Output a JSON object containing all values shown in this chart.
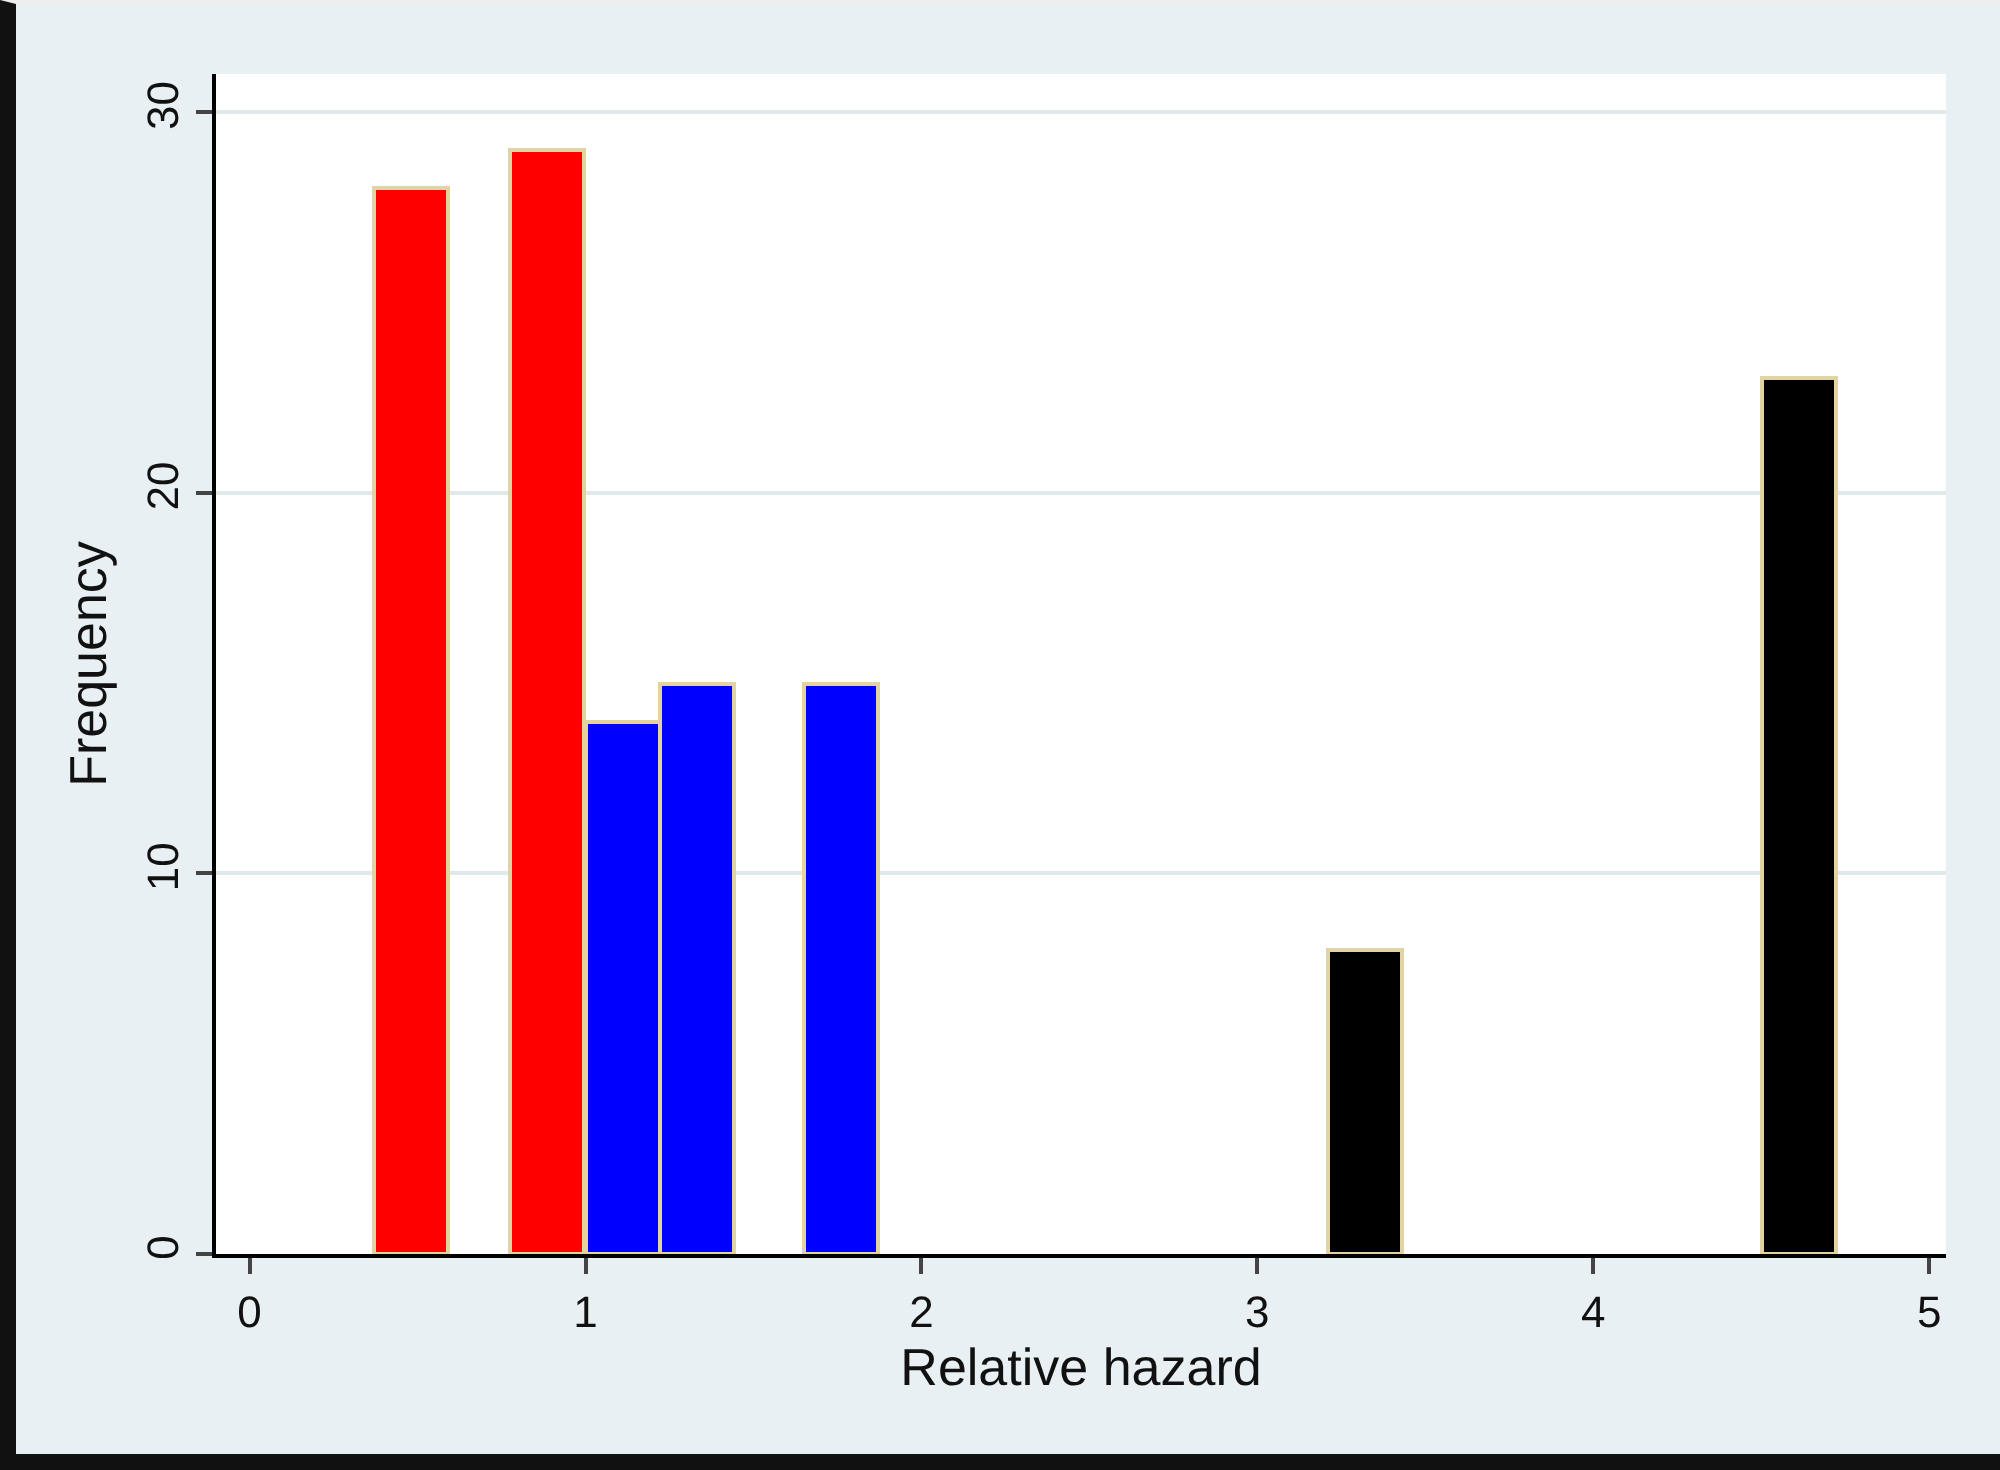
{
  "chart_data": {
    "type": "bar",
    "xlabel": "Relative hazard",
    "ylabel": "Frequency",
    "x": [
      0.48,
      0.885,
      1.11,
      1.33,
      1.76,
      3.32,
      4.61
    ],
    "values": [
      28,
      29,
      14,
      15,
      15,
      8,
      23
    ],
    "colors": [
      "#ff0000",
      "#ff0000",
      "#0000ff",
      "#0000ff",
      "#0000ff",
      "#000000",
      "#000000"
    ],
    "xlim": [
      -0.1,
      5.05
    ],
    "xticks": [
      0,
      1,
      2,
      3,
      4,
      5
    ],
    "ylim": [
      0,
      31
    ],
    "yticks": [
      0,
      10,
      20,
      30
    ],
    "grid": "y",
    "legend": false
  }
}
